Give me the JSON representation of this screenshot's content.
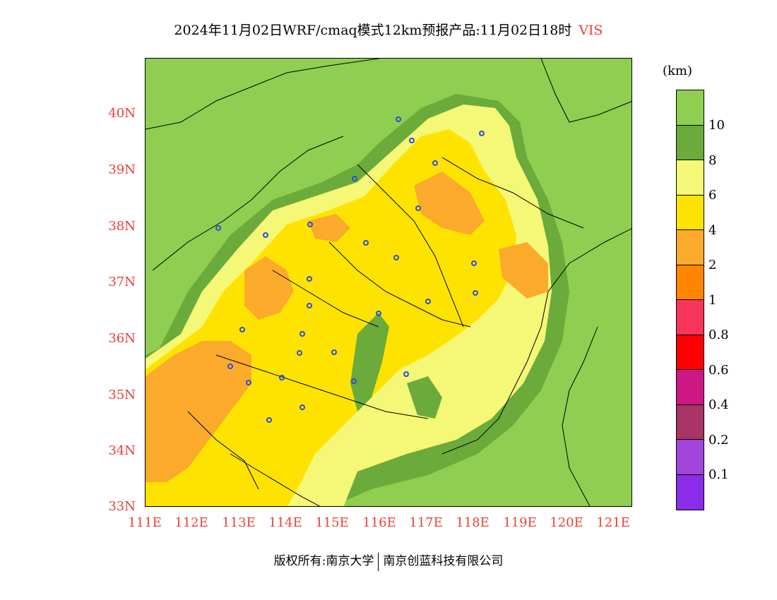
{
  "header": {
    "title": "2024年11月02日WRF/cmaq模式12km预报产品:11月02日18时",
    "variable": "VIS"
  },
  "axes": {
    "lat_labels": [
      "40N",
      "39N",
      "38N",
      "37N",
      "36N",
      "35N",
      "34N",
      "33N"
    ],
    "lon_labels": [
      "111E",
      "112E",
      "113E",
      "114E",
      "115E",
      "116E",
      "117E",
      "118E",
      "119E",
      "120E",
      "121E"
    ]
  },
  "colorbar": {
    "unit": "(km)",
    "labels": [
      "10",
      "8",
      "6",
      "4",
      "2",
      "1",
      "0.8",
      "0.6",
      "0.4",
      "0.2",
      "0.1"
    ],
    "colors": [
      "#8fce51",
      "#6aab3b",
      "#f5f776",
      "#ffe300",
      "#fbaa2c",
      "#ff8700",
      "#f7355b",
      "#ff0000",
      "#cd1783",
      "#a83565",
      "#a245db",
      "#8b2ce8"
    ]
  },
  "credit": {
    "left": "版权所有:南京大学",
    "right": "南京创蓝科技有限公司"
  }
}
